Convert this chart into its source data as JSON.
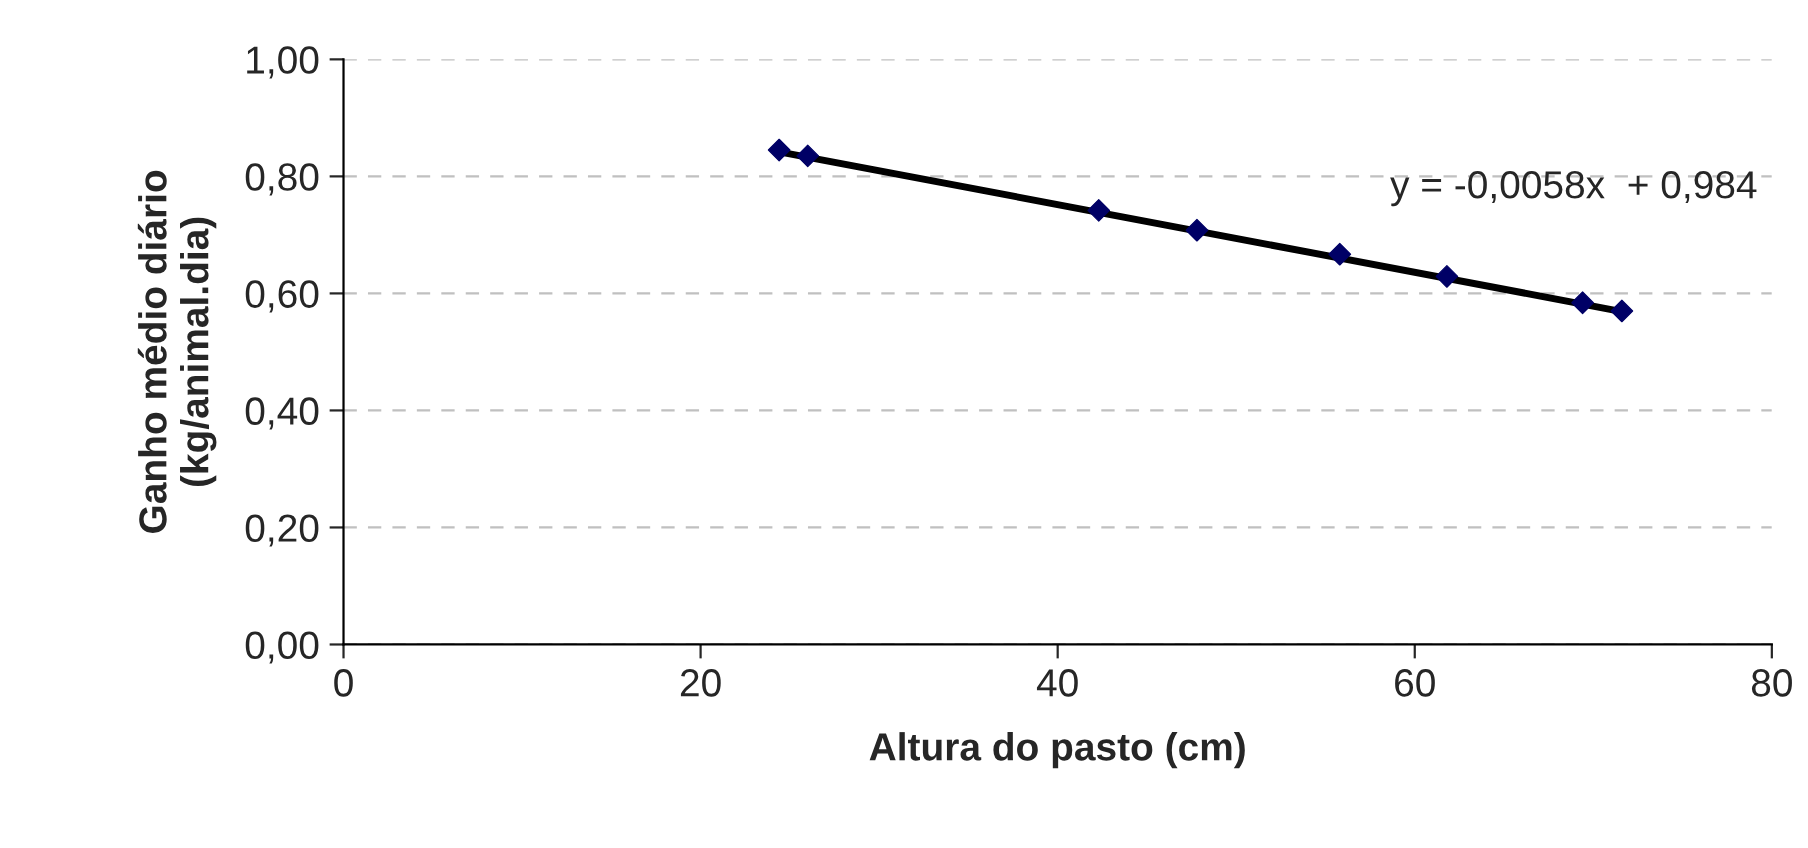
{
  "chart_data": {
    "type": "scatter",
    "xlabel": "Altura do pasto (cm)",
    "ylabel": "Ganho médio diário\n(kg/animal.dia)",
    "annotations": [
      "y = -0,0058x  + 0,984"
    ],
    "series": [
      {
        "color": "#000066",
        "marker": "diamond",
        "x": [
          24.4,
          26.0,
          42.3,
          47.8,
          55.8,
          61.8,
          69.4,
          71.6
        ],
        "values": [
          0.845,
          0.835,
          0.742,
          0.708,
          0.667,
          0.629,
          0.584,
          0.57
        ]
      },
      {
        "type": "line",
        "color": "#000000",
        "line_style": "solid",
        "x": [
          24.4,
          71.6
        ],
        "values": [
          0.842,
          0.569
        ]
      }
    ],
    "xlim": [
      0,
      80
    ],
    "xticks": [
      0,
      20,
      40,
      60,
      80
    ],
    "ylim": [
      0,
      1
    ],
    "yticks": [
      {
        "value": 0,
        "label": "0,00"
      },
      {
        "value": 0.2,
        "label": "0,20"
      },
      {
        "value": 0.4,
        "label": "0,40"
      },
      {
        "value": 0.6,
        "label": "0,60"
      },
      {
        "value": 0.8,
        "label": "0,80"
      },
      {
        "value": 1,
        "label": "1,00"
      }
    ],
    "grid": "y",
    "legend": false
  }
}
